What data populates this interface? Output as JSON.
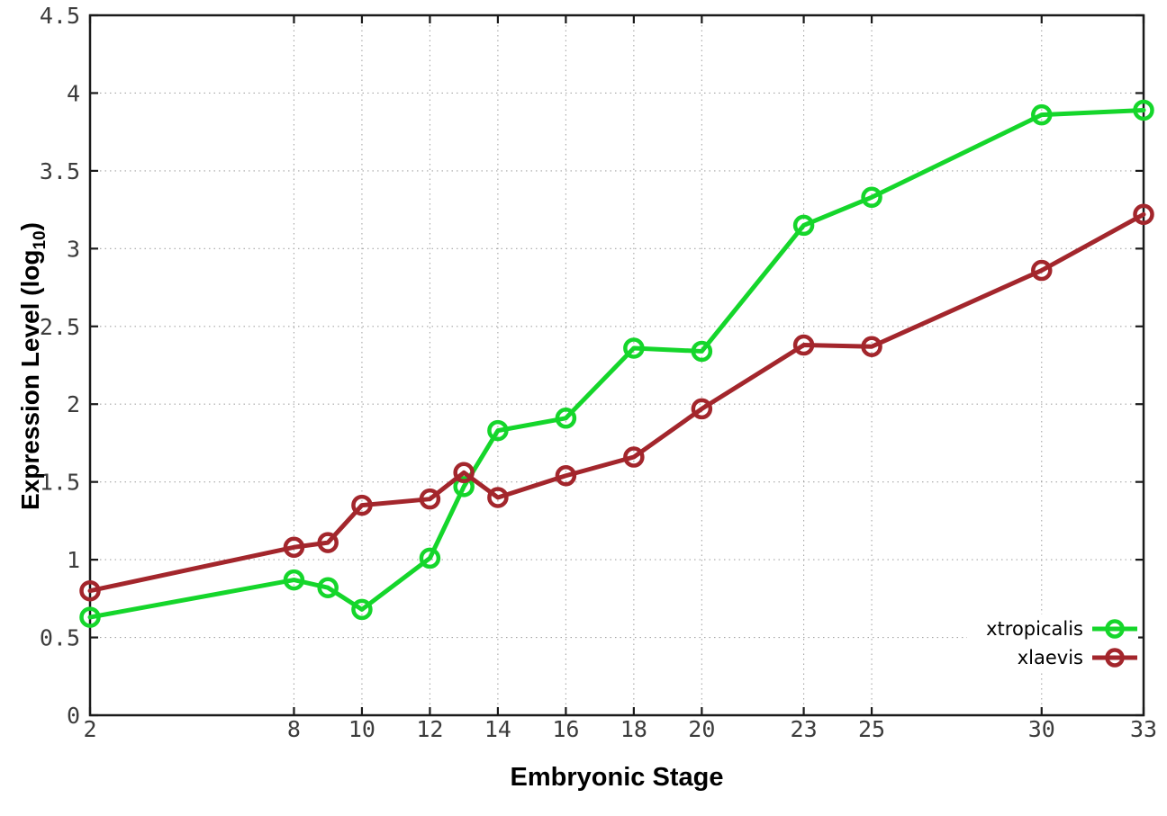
{
  "chart_data": {
    "type": "line",
    "title": "",
    "xlabel": "Embryonic Stage",
    "ylabel": "Expression Level (log10)",
    "ylabel_parts": {
      "prefix": "Expression Level (log",
      "sub": "10",
      "suffix": ")"
    },
    "xlim": [
      2,
      33
    ],
    "ylim": [
      0,
      4.5
    ],
    "grid": true,
    "legend_position": "bottom-right",
    "xticks": [
      2,
      8,
      10,
      12,
      14,
      16,
      18,
      20,
      23,
      25,
      30,
      33
    ],
    "yticks": [
      "0",
      "0.5",
      "1",
      "1.5",
      "2",
      "2.5",
      "3",
      "3.5",
      "4",
      "4.5"
    ],
    "x": [
      2,
      8,
      9,
      10,
      12,
      13,
      14,
      16,
      18,
      20,
      23,
      25,
      30,
      33
    ],
    "series": [
      {
        "name": "xtropicalis",
        "color": "#15d62b",
        "values": [
          0.63,
          0.87,
          0.82,
          0.68,
          1.01,
          1.47,
          1.83,
          1.91,
          2.36,
          2.34,
          3.15,
          3.33,
          3.86,
          3.89
        ]
      },
      {
        "name": "xlaevis",
        "color": "#a3262c",
        "values": [
          0.8,
          1.08,
          1.11,
          1.35,
          1.39,
          1.56,
          1.4,
          1.54,
          1.66,
          1.97,
          2.38,
          2.37,
          2.86,
          3.22
        ]
      }
    ]
  }
}
